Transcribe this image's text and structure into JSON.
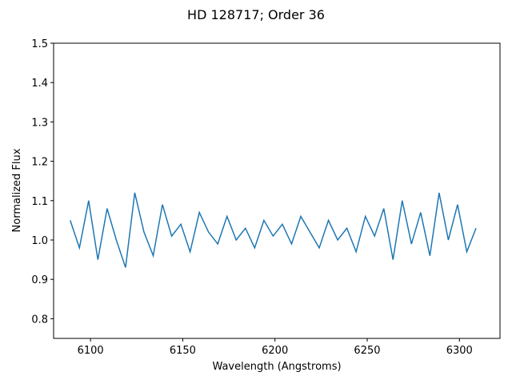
{
  "chart_data": {
    "type": "line",
    "title": "HD 128717; Order 36",
    "xlabel": "Wavelength (Angstroms)",
    "ylabel": "Normalized Flux",
    "xlim": [
      6080,
      6322
    ],
    "ylim": [
      0.75,
      1.5
    ],
    "x_ticks": [
      6100,
      6150,
      6200,
      6250,
      6300
    ],
    "y_ticks": [
      0.8,
      0.9,
      1.0,
      1.1,
      1.2,
      1.3,
      1.4,
      1.5
    ],
    "grid": false,
    "series": [
      {
        "color": "#1f77b4",
        "x": [
          6089,
          6094,
          6099,
          6104,
          6109,
          6114,
          6119,
          6124,
          6129,
          6134,
          6139,
          6144,
          6149,
          6154,
          6159,
          6164,
          6169,
          6174,
          6179,
          6184,
          6189,
          6194,
          6199,
          6204,
          6209,
          6214,
          6219,
          6224,
          6229,
          6234,
          6239,
          6244,
          6249,
          6254,
          6259,
          6264,
          6269,
          6274,
          6279,
          6284,
          6289,
          6294,
          6299,
          6304,
          6309
        ],
        "y": [
          1.05,
          0.98,
          1.1,
          0.95,
          1.08,
          1.0,
          0.93,
          1.12,
          1.02,
          0.96,
          1.09,
          1.01,
          1.04,
          0.97,
          1.07,
          1.02,
          0.99,
          1.06,
          1.0,
          1.03,
          0.98,
          1.05,
          1.01,
          1.04,
          0.99,
          1.06,
          1.02,
          0.98,
          1.05,
          1.0,
          1.03,
          0.97,
          1.06,
          1.01,
          1.08,
          0.95,
          1.1,
          0.99,
          1.07,
          0.96,
          1.12,
          1.0,
          1.09,
          0.97,
          1.03
        ]
      }
    ]
  }
}
